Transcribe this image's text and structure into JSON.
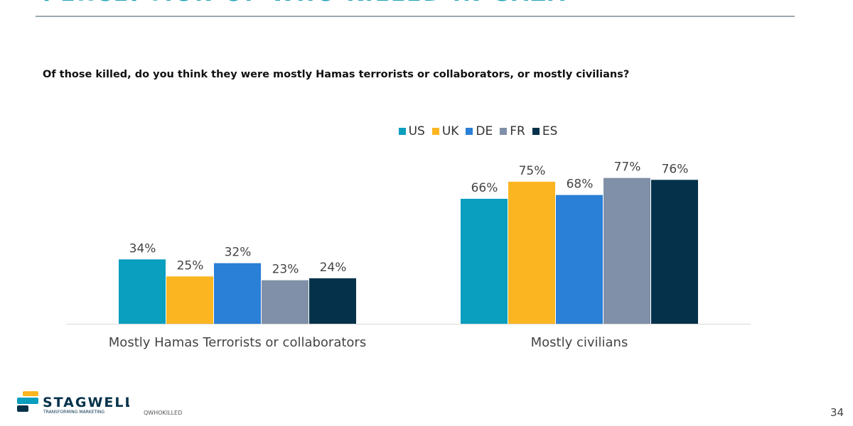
{
  "header": {
    "title": "PERCEPTION OF WHO KILLED IN GAZA"
  },
  "question": "Of those killed, do you think they were mostly Hamas terrorists or collaborators, or mostly civilians?",
  "footer": {
    "code": "QWHOKILLED",
    "page": "34",
    "logo_text": "STAGWELL",
    "logo_tagline": "TRANSFORMING MARKETING"
  },
  "chart_data": {
    "type": "bar",
    "categories": [
      "Mostly Hamas Terrorists or collaborators",
      "Mostly civilians"
    ],
    "series": [
      {
        "name": "US",
        "color": "#0a9ebf",
        "values": [
          34,
          66
        ]
      },
      {
        "name": "UK",
        "color": "#fbb520",
        "values": [
          25,
          75
        ]
      },
      {
        "name": "DE",
        "color": "#2a7fd6",
        "values": [
          32,
          68
        ]
      },
      {
        "name": "FR",
        "color": "#8090a8",
        "values": [
          23,
          77
        ]
      },
      {
        "name": "ES",
        "color": "#05324a",
        "values": [
          24,
          76
        ]
      }
    ],
    "value_suffix": "%",
    "ylim": [
      0,
      100
    ],
    "grid": false,
    "legend": "top-center"
  }
}
